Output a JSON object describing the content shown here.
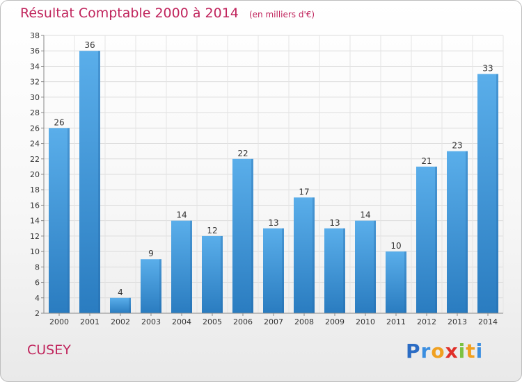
{
  "chart_data": {
    "type": "bar",
    "title": "Résultat Comptable 2000 à 2014",
    "subtitle": "(en milliers d'€)",
    "categories": [
      "2000",
      "2001",
      "2002",
      "2003",
      "2004",
      "2005",
      "2006",
      "2007",
      "2008",
      "2009",
      "2010",
      "2011",
      "2012",
      "2013",
      "2014"
    ],
    "values": [
      26,
      36,
      4,
      9,
      14,
      12,
      22,
      13,
      17,
      13,
      14,
      10,
      21,
      23,
      33
    ],
    "ylim": [
      2,
      38
    ],
    "yticks": [
      2,
      4,
      6,
      8,
      10,
      12,
      14,
      16,
      18,
      20,
      22,
      24,
      26,
      28,
      30,
      32,
      34,
      36,
      38
    ],
    "xlabel": "",
    "ylabel": "",
    "grid": true,
    "bar_color": "#3d8fd4"
  },
  "town": "CUSEY",
  "logo": {
    "letters": [
      "P",
      "r",
      "o",
      "x",
      "i",
      "t",
      "i"
    ],
    "colors": [
      "#2b6cc4",
      "#3a8ee0",
      "#f0a020",
      "#e0302a",
      "#7cc242",
      "#f0a020",
      "#3a8ee0"
    ]
  }
}
